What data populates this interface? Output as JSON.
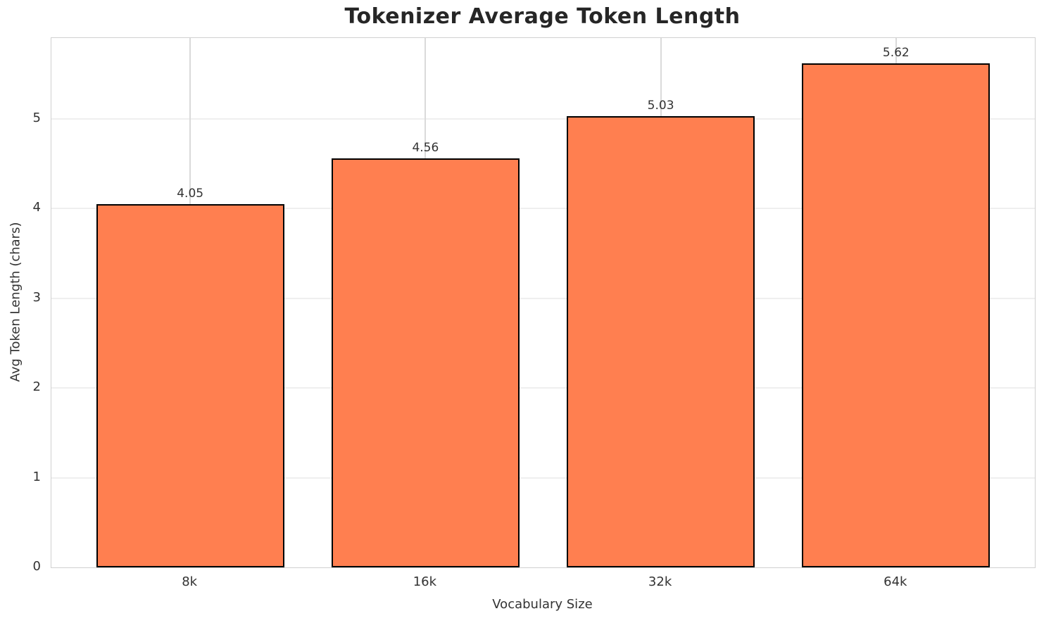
{
  "chart_data": {
    "type": "bar",
    "title": "Tokenizer Average Token Length",
    "xlabel": "Vocabulary Size",
    "ylabel": "Avg Token Length (chars)",
    "categories": [
      "8k",
      "16k",
      "32k",
      "64k"
    ],
    "values": [
      4.05,
      4.56,
      5.03,
      5.62
    ],
    "value_labels": [
      "4.05",
      "4.56",
      "5.03",
      "5.62"
    ],
    "yticks": [
      0,
      1,
      2,
      3,
      4,
      5
    ],
    "ylim": [
      0,
      5.9
    ],
    "grid": "both",
    "legend": "none",
    "bar_color": "#FF7F50",
    "bar_edge_color": "#000000",
    "background_color": "#ffffff"
  }
}
